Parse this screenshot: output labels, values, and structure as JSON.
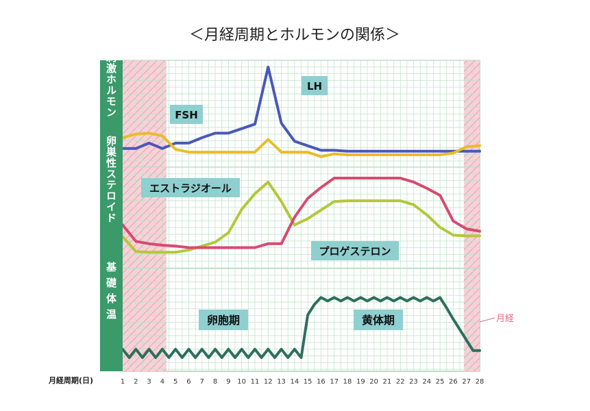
{
  "title": "＜月経周期とホルモンの関係＞",
  "panels": [
    {
      "label": "性腺刺激ホルモン"
    },
    {
      "label": "卵巣性ステロイド"
    },
    {
      "label": "基礎体温"
    }
  ],
  "x_axis_label": "月経周期(日)",
  "menses_label": "月経",
  "phase_labels": {
    "follicular": "卵胞期",
    "luteal": "黄体期"
  },
  "colors": {
    "panel_label_bg": "#3a9a6a",
    "grid": "#bfe3c9",
    "menses_fill": "#f8d2d9",
    "menses_hatch": "#ee9aab",
    "tag_bg": "#8fcfcf",
    "lh": "#4a58b8",
    "fsh": "#e8bd2a",
    "estrogen": "#b4c73a",
    "progesterone": "#d74a72",
    "bbt": "#2f6e5e"
  },
  "chart_data": [
    {
      "type": "line",
      "panel": "性腺刺激ホルモン",
      "x": [
        1,
        2,
        3,
        4,
        5,
        6,
        7,
        8,
        9,
        10,
        11,
        12,
        13,
        14,
        15,
        16,
        17,
        18,
        19,
        20,
        21,
        22,
        23,
        24,
        25,
        26,
        27,
        28
      ],
      "ylim": [
        0,
        100
      ],
      "series": [
        {
          "name": "LH",
          "values": [
            10,
            10,
            16,
            10,
            16,
            16,
            22,
            27,
            27,
            32,
            37,
            100,
            38,
            18,
            13,
            8,
            8,
            7,
            7,
            7,
            7,
            7,
            7,
            7,
            7,
            7,
            7,
            7
          ]
        },
        {
          "name": "FSH",
          "values": [
            22,
            26,
            27,
            24,
            9,
            6,
            6,
            6,
            6,
            6,
            6,
            20,
            6,
            6,
            6,
            1,
            4,
            3,
            3,
            3,
            3,
            3,
            3,
            3,
            3,
            5,
            12,
            13
          ]
        }
      ]
    },
    {
      "type": "line",
      "panel": "卵巣性ステロイド",
      "x": [
        1,
        2,
        3,
        4,
        5,
        6,
        7,
        8,
        9,
        10,
        11,
        12,
        13,
        14,
        15,
        16,
        17,
        18,
        19,
        20,
        21,
        22,
        23,
        24,
        25,
        26,
        27,
        28
      ],
      "ylim": [
        0,
        100
      ],
      "series": [
        {
          "name": "エストラジオール",
          "values": [
            25,
            6,
            5,
            5,
            5,
            8,
            13,
            18,
            30,
            60,
            80,
            95,
            70,
            40,
            48,
            59,
            70,
            71,
            71,
            71,
            71,
            71,
            66,
            53,
            37,
            27,
            26,
            26
          ]
        },
        {
          "name": "プロゲステロン",
          "values": [
            40,
            19,
            16,
            14,
            13,
            11,
            11,
            11,
            11,
            11,
            11,
            16,
            16,
            50,
            74,
            88,
            100,
            100,
            100,
            100,
            100,
            100,
            95,
            87,
            78,
            45,
            35,
            32
          ]
        }
      ]
    },
    {
      "type": "line",
      "panel": "基礎体温",
      "x": [
        1,
        1.5,
        2,
        2.5,
        3,
        3.5,
        4,
        4.5,
        5,
        5.5,
        6,
        6.5,
        7,
        7.5,
        8,
        8.5,
        9,
        9.5,
        10,
        10.5,
        11,
        11.5,
        12,
        12.5,
        13,
        13.5,
        14,
        14.5,
        15,
        15.5,
        16,
        16.5,
        17,
        17.5,
        18,
        18.5,
        19,
        19.5,
        20,
        20.5,
        21,
        21.5,
        22,
        22.5,
        23,
        23.5,
        24,
        24.5,
        25,
        25.5,
        26,
        26.5,
        27,
        27.5,
        28
      ],
      "ylim": [
        0,
        100
      ],
      "series": [
        {
          "name": "",
          "values": [
            12,
            0,
            12,
            0,
            12,
            0,
            12,
            0,
            12,
            0,
            12,
            0,
            12,
            0,
            12,
            0,
            12,
            0,
            12,
            0,
            12,
            0,
            12,
            0,
            12,
            0,
            12,
            0,
            61,
            76,
            86,
            81,
            86,
            81,
            86,
            81,
            86,
            81,
            86,
            81,
            86,
            81,
            86,
            81,
            86,
            81,
            86,
            81,
            86,
            71,
            55,
            40,
            25,
            10,
            10
          ]
        }
      ]
    }
  ],
  "ticks": [
    "1",
    "2",
    "3",
    "4",
    "5",
    "6",
    "7",
    "8",
    "9",
    "10",
    "11",
    "12",
    "13",
    "14",
    "15",
    "16",
    "17",
    "18",
    "19",
    "20",
    "21",
    "22",
    "23",
    "24",
    "25",
    "26",
    "27",
    "28"
  ],
  "tags": {
    "lh": "LH",
    "fsh": "FSH",
    "estrogen": "エストラジオール",
    "progesterone": "プロゲステロン"
  }
}
